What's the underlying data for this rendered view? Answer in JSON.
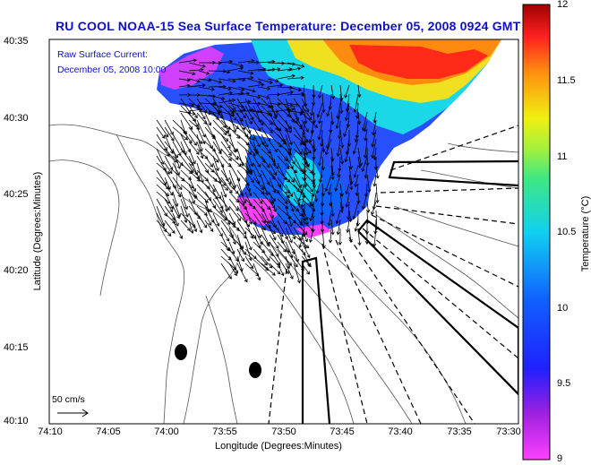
{
  "title": "RU COOL  NOAA-15  Sea Surface Temperature:  December 05, 2008 0924 GMT",
  "overlay_note": [
    "Raw Surface Current:",
    "December 05, 2008 10:00"
  ],
  "xlabel": "Longitude (Degrees:Minutes)",
  "ylabel": "Latitude (Degrees:Minutes)",
  "x_ticks": [
    "74:10",
    "74:05",
    "74:00",
    "73:55",
    "73:50",
    "73:45",
    "73:40",
    "73:35",
    "73:30"
  ],
  "y_ticks": [
    "40:35",
    "40:30",
    "40:25",
    "40:20",
    "40:15",
    "40:10"
  ],
  "colorbar": {
    "label": "Temperature (°C)",
    "ticks": [
      "12",
      "11.5",
      "11",
      "10.5",
      "10",
      "9.5",
      "9"
    ],
    "range": [
      9,
      12
    ]
  },
  "scale_label": "50 cm/s",
  "colors": {
    "title": "#1010c8",
    "sst_warm": "#ff3020",
    "sst_mid": "#10d0e0",
    "sst_cold": "#2040ff",
    "land_line": "#444444"
  }
}
